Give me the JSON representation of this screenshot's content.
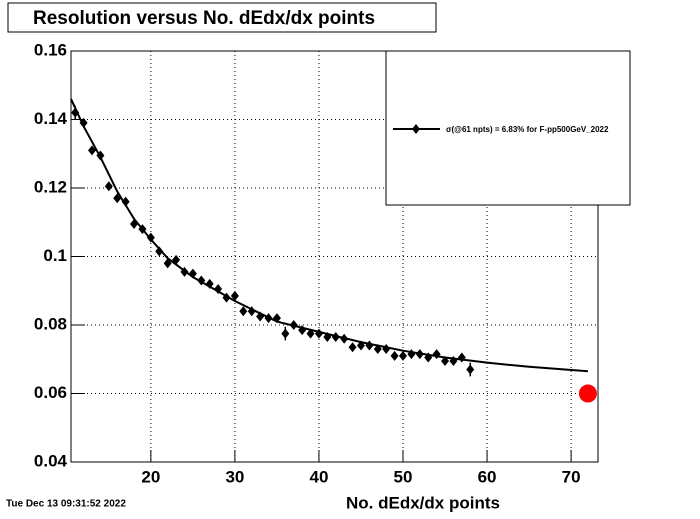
{
  "chart_data": {
    "type": "scatter",
    "title": "Resolution versus No. dEdx/dx points",
    "x_label": "No. dEdx/dx points",
    "timestamp": "Tue Dec 13 09:31:52 2022",
    "xlim": [
      10.5,
      73.2
    ],
    "ylim": [
      0.04,
      0.16
    ],
    "xticks": [
      20,
      30,
      40,
      50,
      60,
      70
    ],
    "yticks": [
      0.04,
      0.06,
      0.08,
      0.1,
      0.12,
      0.14,
      0.16
    ],
    "grid": true,
    "series": [
      {
        "name": "σ(@61 npts) =  6.83% for F-pp500GeV_2022",
        "color": "#000000",
        "x": [
          11,
          12,
          13,
          14,
          15,
          16,
          17,
          18,
          19,
          20,
          21,
          22,
          23,
          24,
          25,
          26,
          27,
          28,
          29,
          30,
          31,
          32,
          33,
          34,
          35,
          36,
          37,
          38,
          39,
          40,
          41,
          42,
          43,
          44,
          45,
          46,
          47,
          48,
          49,
          50,
          51,
          52,
          53,
          54,
          55,
          56,
          57,
          58
        ],
        "values": [
          0.142,
          0.139,
          0.131,
          0.1295,
          0.1205,
          0.117,
          0.116,
          0.1095,
          0.108,
          0.1055,
          0.1015,
          0.098,
          0.099,
          0.0955,
          0.095,
          0.093,
          0.092,
          0.0905,
          0.088,
          0.0885,
          0.084,
          0.084,
          0.0825,
          0.082,
          0.082,
          0.0775,
          0.08,
          0.0785,
          0.0775,
          0.0775,
          0.0765,
          0.0765,
          0.076,
          0.0735,
          0.074,
          0.074,
          0.073,
          0.073,
          0.071,
          0.071,
          0.0715,
          0.0715,
          0.0705,
          0.0715,
          0.0695,
          0.0695,
          0.0705,
          0.067
        ],
        "errors": [
          0.002,
          0.001,
          0.001,
          0.001,
          0.001,
          0.001,
          0.001,
          0.001,
          0.001,
          0.001,
          0.001,
          0.001,
          0.001,
          0.001,
          0.001,
          0.001,
          0.001,
          0.001,
          0.001,
          0.001,
          0.001,
          0.001,
          0.001,
          0.001,
          0.001,
          0.002,
          0.001,
          0.001,
          0.001,
          0.001,
          0.001,
          0.001,
          0.001,
          0.001,
          0.001,
          0.001,
          0.001,
          0.001,
          0.001,
          0.001,
          0.001,
          0.001,
          0.001,
          0.001,
          0.001,
          0.001,
          0.001,
          0.002
        ]
      }
    ],
    "fit": {
      "color": "#000000",
      "x": [
        10.5,
        12,
        14,
        16,
        18,
        20,
        22,
        25,
        30,
        35,
        40,
        45,
        50,
        55,
        60,
        65,
        72
      ],
      "values": [
        0.146,
        0.138,
        0.129,
        0.119,
        0.111,
        0.105,
        0.0995,
        0.094,
        0.087,
        0.081,
        0.078,
        0.075,
        0.0725,
        0.0705,
        0.069,
        0.0678,
        0.0665
      ]
    },
    "marker": {
      "x": 72,
      "y": 0.06,
      "color": "#ff0000"
    }
  }
}
